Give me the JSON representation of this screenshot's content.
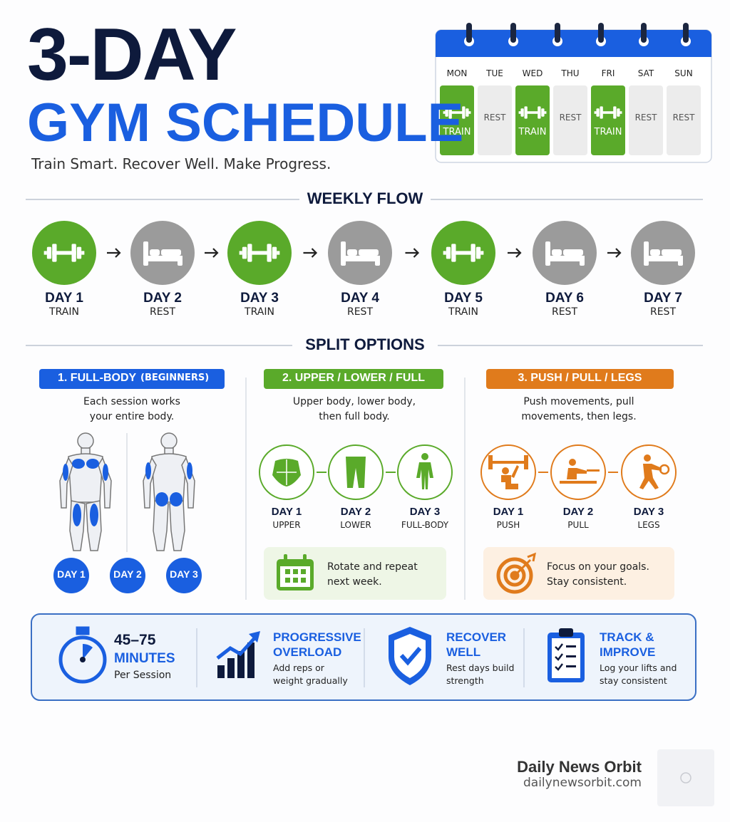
{
  "header": {
    "title_line1": "3-DAY",
    "title_line2": "GYM SCHEDULE",
    "tagline": "Train Smart. Recover Well. Make Progress."
  },
  "calendar": {
    "days": [
      {
        "name": "MON",
        "status": "TRAIN"
      },
      {
        "name": "TUE",
        "status": "REST"
      },
      {
        "name": "WED",
        "status": "TRAIN"
      },
      {
        "name": "THU",
        "status": "REST"
      },
      {
        "name": "FRI",
        "status": "TRAIN"
      },
      {
        "name": "SAT",
        "status": "REST"
      },
      {
        "name": "SUN",
        "status": "REST"
      }
    ]
  },
  "weekly_flow": {
    "title": "WEEKLY FLOW",
    "days": [
      {
        "label": "DAY 1",
        "status": "TRAIN"
      },
      {
        "label": "DAY 2",
        "status": "REST"
      },
      {
        "label": "DAY 3",
        "status": "TRAIN"
      },
      {
        "label": "DAY 4",
        "status": "REST"
      },
      {
        "label": "DAY 5",
        "status": "TRAIN"
      },
      {
        "label": "DAY 6",
        "status": "REST"
      },
      {
        "label": "DAY 7",
        "status": "REST"
      }
    ]
  },
  "split_options": {
    "title": "SPLIT OPTIONS",
    "options": [
      {
        "title": "1. FULL-BODY",
        "title_note": "(BEGINNERS)",
        "description": "Each session works your entire body.",
        "days": [
          {
            "label": "DAY 1"
          },
          {
            "label": "DAY 2"
          },
          {
            "label": "DAY 3"
          }
        ]
      },
      {
        "title": "2. UPPER / LOWER / FULL",
        "description": "Upper body, lower body, then full body.",
        "days": [
          {
            "label": "DAY 1",
            "focus": "UPPER"
          },
          {
            "label": "DAY 2",
            "focus": "LOWER"
          },
          {
            "label": "DAY 3",
            "focus": "FULL-BODY"
          }
        ],
        "note": "Rotate and repeat next week."
      },
      {
        "title": "3. PUSH / PULL / LEGS",
        "description": "Push movements, pull movements, then legs.",
        "days": [
          {
            "label": "DAY 1",
            "focus": "PUSH"
          },
          {
            "label": "DAY 2",
            "focus": "PULL"
          },
          {
            "label": "DAY 3",
            "focus": "LEGS"
          }
        ],
        "note": "Focus on your goals. Stay consistent."
      }
    ]
  },
  "tips": [
    {
      "title": "45–75",
      "subtitle": "MINUTES",
      "text": "Per Session"
    },
    {
      "title": "PROGRESSIVE OVERLOAD",
      "text": "Add reps or weight gradually"
    },
    {
      "title": "RECOVER WELL",
      "text": "Rest days build strength"
    },
    {
      "title": "TRACK & IMPROVE",
      "text": "Log your lifts and stay consistent"
    }
  ],
  "footer": {
    "brand": "Daily News Orbit",
    "url": "dailynewsorbit.com"
  }
}
